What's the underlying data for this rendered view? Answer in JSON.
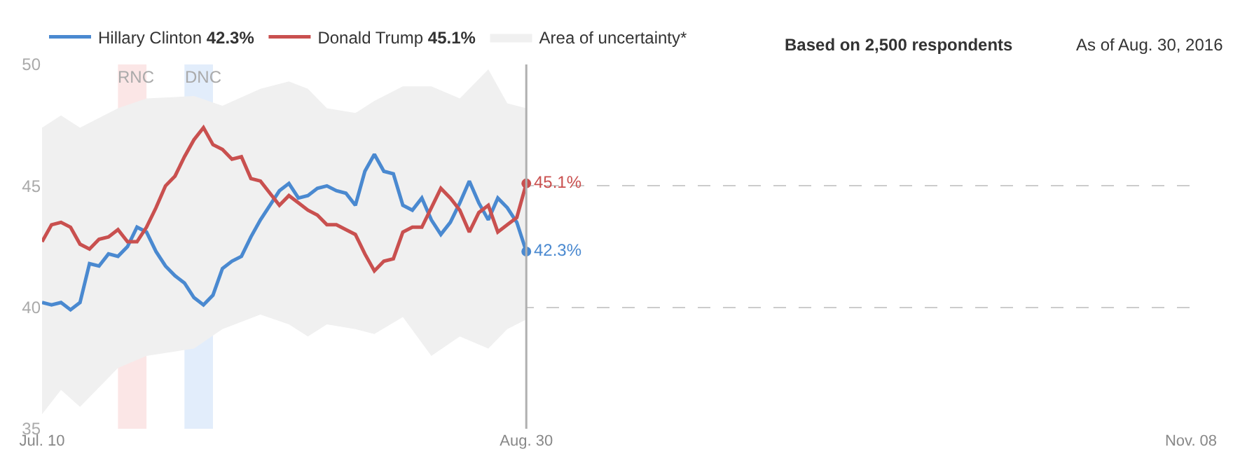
{
  "chart_data": {
    "type": "line",
    "x": [
      "2016-07-10",
      "2016-07-11",
      "2016-07-12",
      "2016-07-13",
      "2016-07-14",
      "2016-07-15",
      "2016-07-16",
      "2016-07-17",
      "2016-07-18",
      "2016-07-19",
      "2016-07-20",
      "2016-07-21",
      "2016-07-22",
      "2016-07-23",
      "2016-07-24",
      "2016-07-25",
      "2016-07-26",
      "2016-07-27",
      "2016-07-28",
      "2016-07-29",
      "2016-07-30",
      "2016-07-31",
      "2016-08-01",
      "2016-08-02",
      "2016-08-03",
      "2016-08-04",
      "2016-08-05",
      "2016-08-06",
      "2016-08-07",
      "2016-08-08",
      "2016-08-09",
      "2016-08-10",
      "2016-08-11",
      "2016-08-12",
      "2016-08-13",
      "2016-08-14",
      "2016-08-15",
      "2016-08-16",
      "2016-08-17",
      "2016-08-18",
      "2016-08-19",
      "2016-08-20",
      "2016-08-21",
      "2016-08-22",
      "2016-08-23",
      "2016-08-24",
      "2016-08-25",
      "2016-08-26",
      "2016-08-27",
      "2016-08-28",
      "2016-08-29",
      "2016-08-30"
    ],
    "series": [
      {
        "name": "Hillary Clinton 42.3%",
        "color": "#4a89d0",
        "values": [
          40.2,
          40.1,
          40.2,
          39.9,
          40.2,
          41.8,
          41.7,
          42.2,
          42.1,
          42.5,
          43.3,
          43.1,
          42.3,
          41.7,
          41.3,
          41.0,
          40.4,
          40.1,
          40.5,
          41.6,
          41.9,
          42.1,
          42.9,
          43.6,
          44.2,
          44.8,
          45.1,
          44.5,
          44.6,
          44.9,
          45.0,
          44.8,
          44.7,
          44.2,
          45.6,
          46.3,
          45.6,
          45.5,
          44.2,
          44.0,
          44.5,
          43.6,
          43.0,
          43.5,
          44.3,
          45.2,
          44.3,
          43.6,
          44.5,
          44.1,
          43.5,
          42.3
        ],
        "value_labels": [
          null,
          null,
          null,
          null,
          null,
          null,
          null,
          null,
          null,
          null,
          null,
          null,
          null,
          null,
          null,
          null,
          null,
          null,
          null,
          null,
          null,
          null,
          null,
          null,
          null,
          null,
          null,
          null,
          null,
          null,
          null,
          null,
          null,
          null,
          null,
          null,
          null,
          null,
          null,
          null,
          null,
          null,
          null,
          null,
          null,
          null,
          null,
          null,
          null,
          null,
          null,
          "42.3%"
        ]
      },
      {
        "name": "Donald Trump 45.1%",
        "color": "#c9504f",
        "values": [
          42.7,
          43.4,
          43.5,
          43.3,
          42.6,
          42.4,
          42.8,
          42.9,
          43.2,
          42.7,
          42.7,
          43.3,
          44.1,
          45.0,
          45.4,
          46.2,
          46.9,
          47.4,
          46.7,
          46.5,
          46.1,
          46.2,
          45.3,
          45.2,
          44.7,
          44.2,
          44.6,
          44.3,
          44.0,
          43.8,
          43.4,
          43.4,
          43.2,
          43.0,
          42.2,
          41.5,
          41.9,
          42.0,
          43.1,
          43.3,
          43.3,
          44.1,
          44.9,
          44.5,
          44.0,
          43.1,
          43.9,
          44.2,
          43.1,
          43.4,
          43.7,
          45.1
        ],
        "value_labels": [
          null,
          null,
          null,
          null,
          null,
          null,
          null,
          null,
          null,
          null,
          null,
          null,
          null,
          null,
          null,
          null,
          null,
          null,
          null,
          null,
          null,
          null,
          null,
          null,
          null,
          null,
          null,
          null,
          null,
          null,
          null,
          null,
          null,
          null,
          null,
          null,
          null,
          null,
          null,
          null,
          null,
          null,
          null,
          null,
          null,
          null,
          null,
          null,
          null,
          null,
          null,
          "45.1%"
        ]
      },
      {
        "name": "Area of uncertainty*",
        "type": "area",
        "color": "#f0f0f0",
        "values": [
          null,
          null,
          null,
          null,
          null,
          null,
          null,
          null,
          null,
          null,
          null,
          null,
          null,
          null,
          null,
          null,
          null,
          null,
          null
        ],
        "x": [
          "2016-07-10",
          "2016-07-12",
          "2016-07-14",
          "2016-07-18",
          "2016-07-21",
          "2016-07-26",
          "2016-07-29",
          "2016-08-02",
          "2016-08-05",
          "2016-08-07",
          "2016-08-09",
          "2016-08-12",
          "2016-08-14",
          "2016-08-17",
          "2016-08-20",
          "2016-08-23",
          "2016-08-26",
          "2016-08-28",
          "2016-08-30"
        ],
        "upper": [
          47.4,
          47.9,
          47.4,
          48.2,
          48.6,
          48.7,
          48.3,
          49.0,
          49.3,
          49.0,
          48.2,
          48.0,
          48.5,
          49.1,
          49.1,
          48.6,
          49.8,
          48.4,
          48.2
        ],
        "lower": [
          35.6,
          36.6,
          35.9,
          37.5,
          38.0,
          38.3,
          39.1,
          39.7,
          39.3,
          38.8,
          39.3,
          39.1,
          38.9,
          39.6,
          38.0,
          38.8,
          38.3,
          39.1,
          39.5
        ]
      }
    ],
    "xlim": [
      "2016-07-10",
      "2016-11-08"
    ],
    "xticks": [
      {
        "value": "2016-07-10",
        "label": "Jul. 10"
      },
      {
        "value": "2016-08-30",
        "label": "Aug. 30"
      },
      {
        "value": "2016-11-08",
        "label": "Nov. 08"
      }
    ],
    "ylim": [
      35,
      50
    ],
    "yticks": [
      35,
      40,
      45,
      50
    ],
    "grid": "y",
    "legend": "top left",
    "line_style": "solid",
    "bands": [
      {
        "axis": "x",
        "from": "2016-07-18",
        "to": "2016-07-21",
        "label": "RNC",
        "color": "#fbe6e6"
      },
      {
        "axis": "x",
        "from": "2016-07-25",
        "to": "2016-07-28",
        "label": "DNC",
        "color": "#e2edfb"
      }
    ],
    "ref_lines": [
      {
        "axis": "x",
        "value": "2016-08-30",
        "color": "#b0b0b0"
      }
    ],
    "annotations": [
      "Based on 2,500 respondents",
      "As of Aug. 30, 2016"
    ]
  }
}
